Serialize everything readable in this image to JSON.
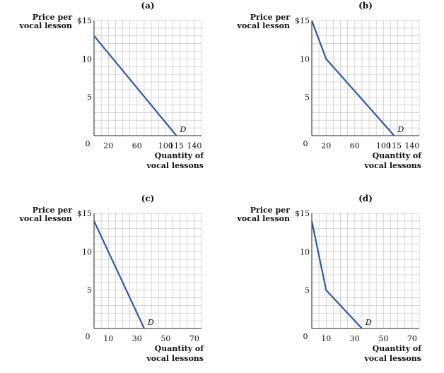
{
  "chart_data": [
    {
      "type": "line",
      "title": "(a)",
      "ylabel": [
        "Price per",
        "vocal lesson"
      ],
      "xlabel": [
        "Quantity of",
        "vocal lessons"
      ],
      "x_ticks": [
        "20",
        "60",
        "100",
        "115",
        "140"
      ],
      "x_tick_values": [
        20,
        60,
        100,
        115,
        140
      ],
      "y_ticks": [
        "$15",
        "10",
        "5"
      ],
      "y_tick_values": [
        15,
        10,
        5
      ],
      "origin_label": "0",
      "xlim": [
        0,
        150
      ],
      "ylim": [
        0,
        15
      ],
      "grid": true,
      "series": [
        {
          "name": "D",
          "x": [
            0,
            115
          ],
          "y": [
            13,
            0
          ],
          "color": "#2f5aa6"
        }
      ]
    },
    {
      "type": "line",
      "title": "(b)",
      "ylabel": [
        "Price per",
        "vocal lesson"
      ],
      "xlabel": [
        "Quantity of",
        "vocal lessons"
      ],
      "x_ticks": [
        "20",
        "60",
        "100",
        "115",
        "140"
      ],
      "x_tick_values": [
        20,
        60,
        100,
        115,
        140
      ],
      "y_ticks": [
        "$15",
        "10",
        "5"
      ],
      "y_tick_values": [
        15,
        10,
        5
      ],
      "origin_label": "0",
      "xlim": [
        0,
        150
      ],
      "ylim": [
        0,
        15
      ],
      "grid": true,
      "series": [
        {
          "name": "D",
          "x": [
            0,
            20,
            115
          ],
          "y": [
            15,
            10,
            0
          ],
          "color": "#2f5aa6"
        }
      ]
    },
    {
      "type": "line",
      "title": "(c)",
      "ylabel": [
        "Price per",
        "vocal lesson"
      ],
      "xlabel": [
        "Quantity of",
        "vocal lessons"
      ],
      "x_ticks": [
        "10",
        "30",
        "50",
        "70"
      ],
      "x_tick_values": [
        10,
        30,
        50,
        70
      ],
      "y_ticks": [
        "$15",
        "10",
        "5"
      ],
      "y_tick_values": [
        15,
        10,
        5
      ],
      "origin_label": "0",
      "xlim": [
        0,
        75
      ],
      "ylim": [
        0,
        15
      ],
      "grid": true,
      "series": [
        {
          "name": "D",
          "x": [
            0,
            35
          ],
          "y": [
            14,
            0
          ],
          "color": "#2f5aa6"
        }
      ]
    },
    {
      "type": "line",
      "title": "(d)",
      "ylabel": [
        "Price per",
        "vocal lesson"
      ],
      "xlabel": [
        "Quantity of",
        "vocal lessons"
      ],
      "x_ticks": [
        "10",
        "30",
        "50",
        "70"
      ],
      "x_tick_values": [
        10,
        30,
        50,
        70
      ],
      "y_ticks": [
        "$15",
        "10",
        "5"
      ],
      "y_tick_values": [
        15,
        10,
        5
      ],
      "origin_label": "0",
      "xlim": [
        0,
        75
      ],
      "ylim": [
        0,
        15
      ],
      "grid": true,
      "series": [
        {
          "name": "D",
          "x": [
            0,
            10,
            35
          ],
          "y": [
            14,
            5,
            0
          ],
          "color": "#2f5aa6"
        }
      ]
    }
  ]
}
